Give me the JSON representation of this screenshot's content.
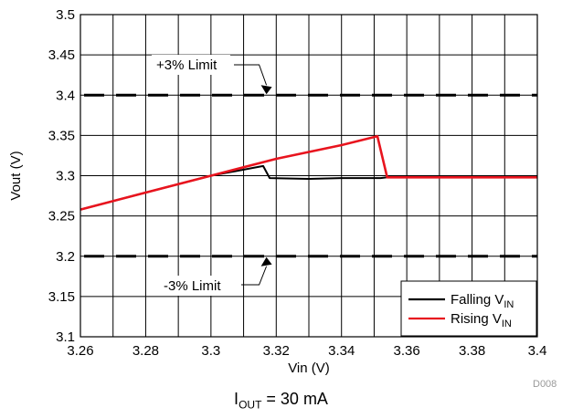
{
  "chart_data": {
    "type": "line",
    "xlabel": "Vin (V)",
    "ylabel": "Vout (V)",
    "xlim": [
      3.26,
      3.4
    ],
    "ylim": [
      3.1,
      3.5
    ],
    "xticks": [
      "3.26",
      "3.28",
      "3.3",
      "3.32",
      "3.34",
      "3.36",
      "3.38",
      "3.4"
    ],
    "yticks": [
      "3.1",
      "3.15",
      "3.2",
      "3.25",
      "3.3",
      "3.35",
      "3.4",
      "3.45",
      "3.5"
    ],
    "grid": true,
    "legend_position": "bottom-right",
    "series": [
      {
        "name": "Falling V",
        "name_sub": "IN",
        "color": "#000000",
        "x": [
          3.4,
          3.354,
          3.352,
          3.34,
          3.33,
          3.318,
          3.316,
          3.3,
          3.28,
          3.26
        ],
        "y": [
          3.298,
          3.298,
          3.297,
          3.297,
          3.296,
          3.297,
          3.312,
          3.3,
          3.279,
          3.258
        ]
      },
      {
        "name": "Rising V",
        "name_sub": "IN",
        "color": "#e8141e",
        "x": [
          3.26,
          3.28,
          3.3,
          3.32,
          3.34,
          3.351,
          3.354,
          3.37,
          3.4
        ],
        "y": [
          3.258,
          3.279,
          3.3,
          3.321,
          3.338,
          3.349,
          3.298,
          3.298,
          3.298
        ]
      }
    ],
    "limit_lines": [
      {
        "label": "+3% Limit",
        "y": 3.4,
        "arrow_x": 3.317
      },
      {
        "label": "-3% Limit",
        "y": 3.2,
        "arrow_x": 3.317
      }
    ],
    "figure_id": "D008",
    "condition": {
      "main": "I",
      "sub": "OUT",
      "rest": " = 30 mA"
    }
  }
}
